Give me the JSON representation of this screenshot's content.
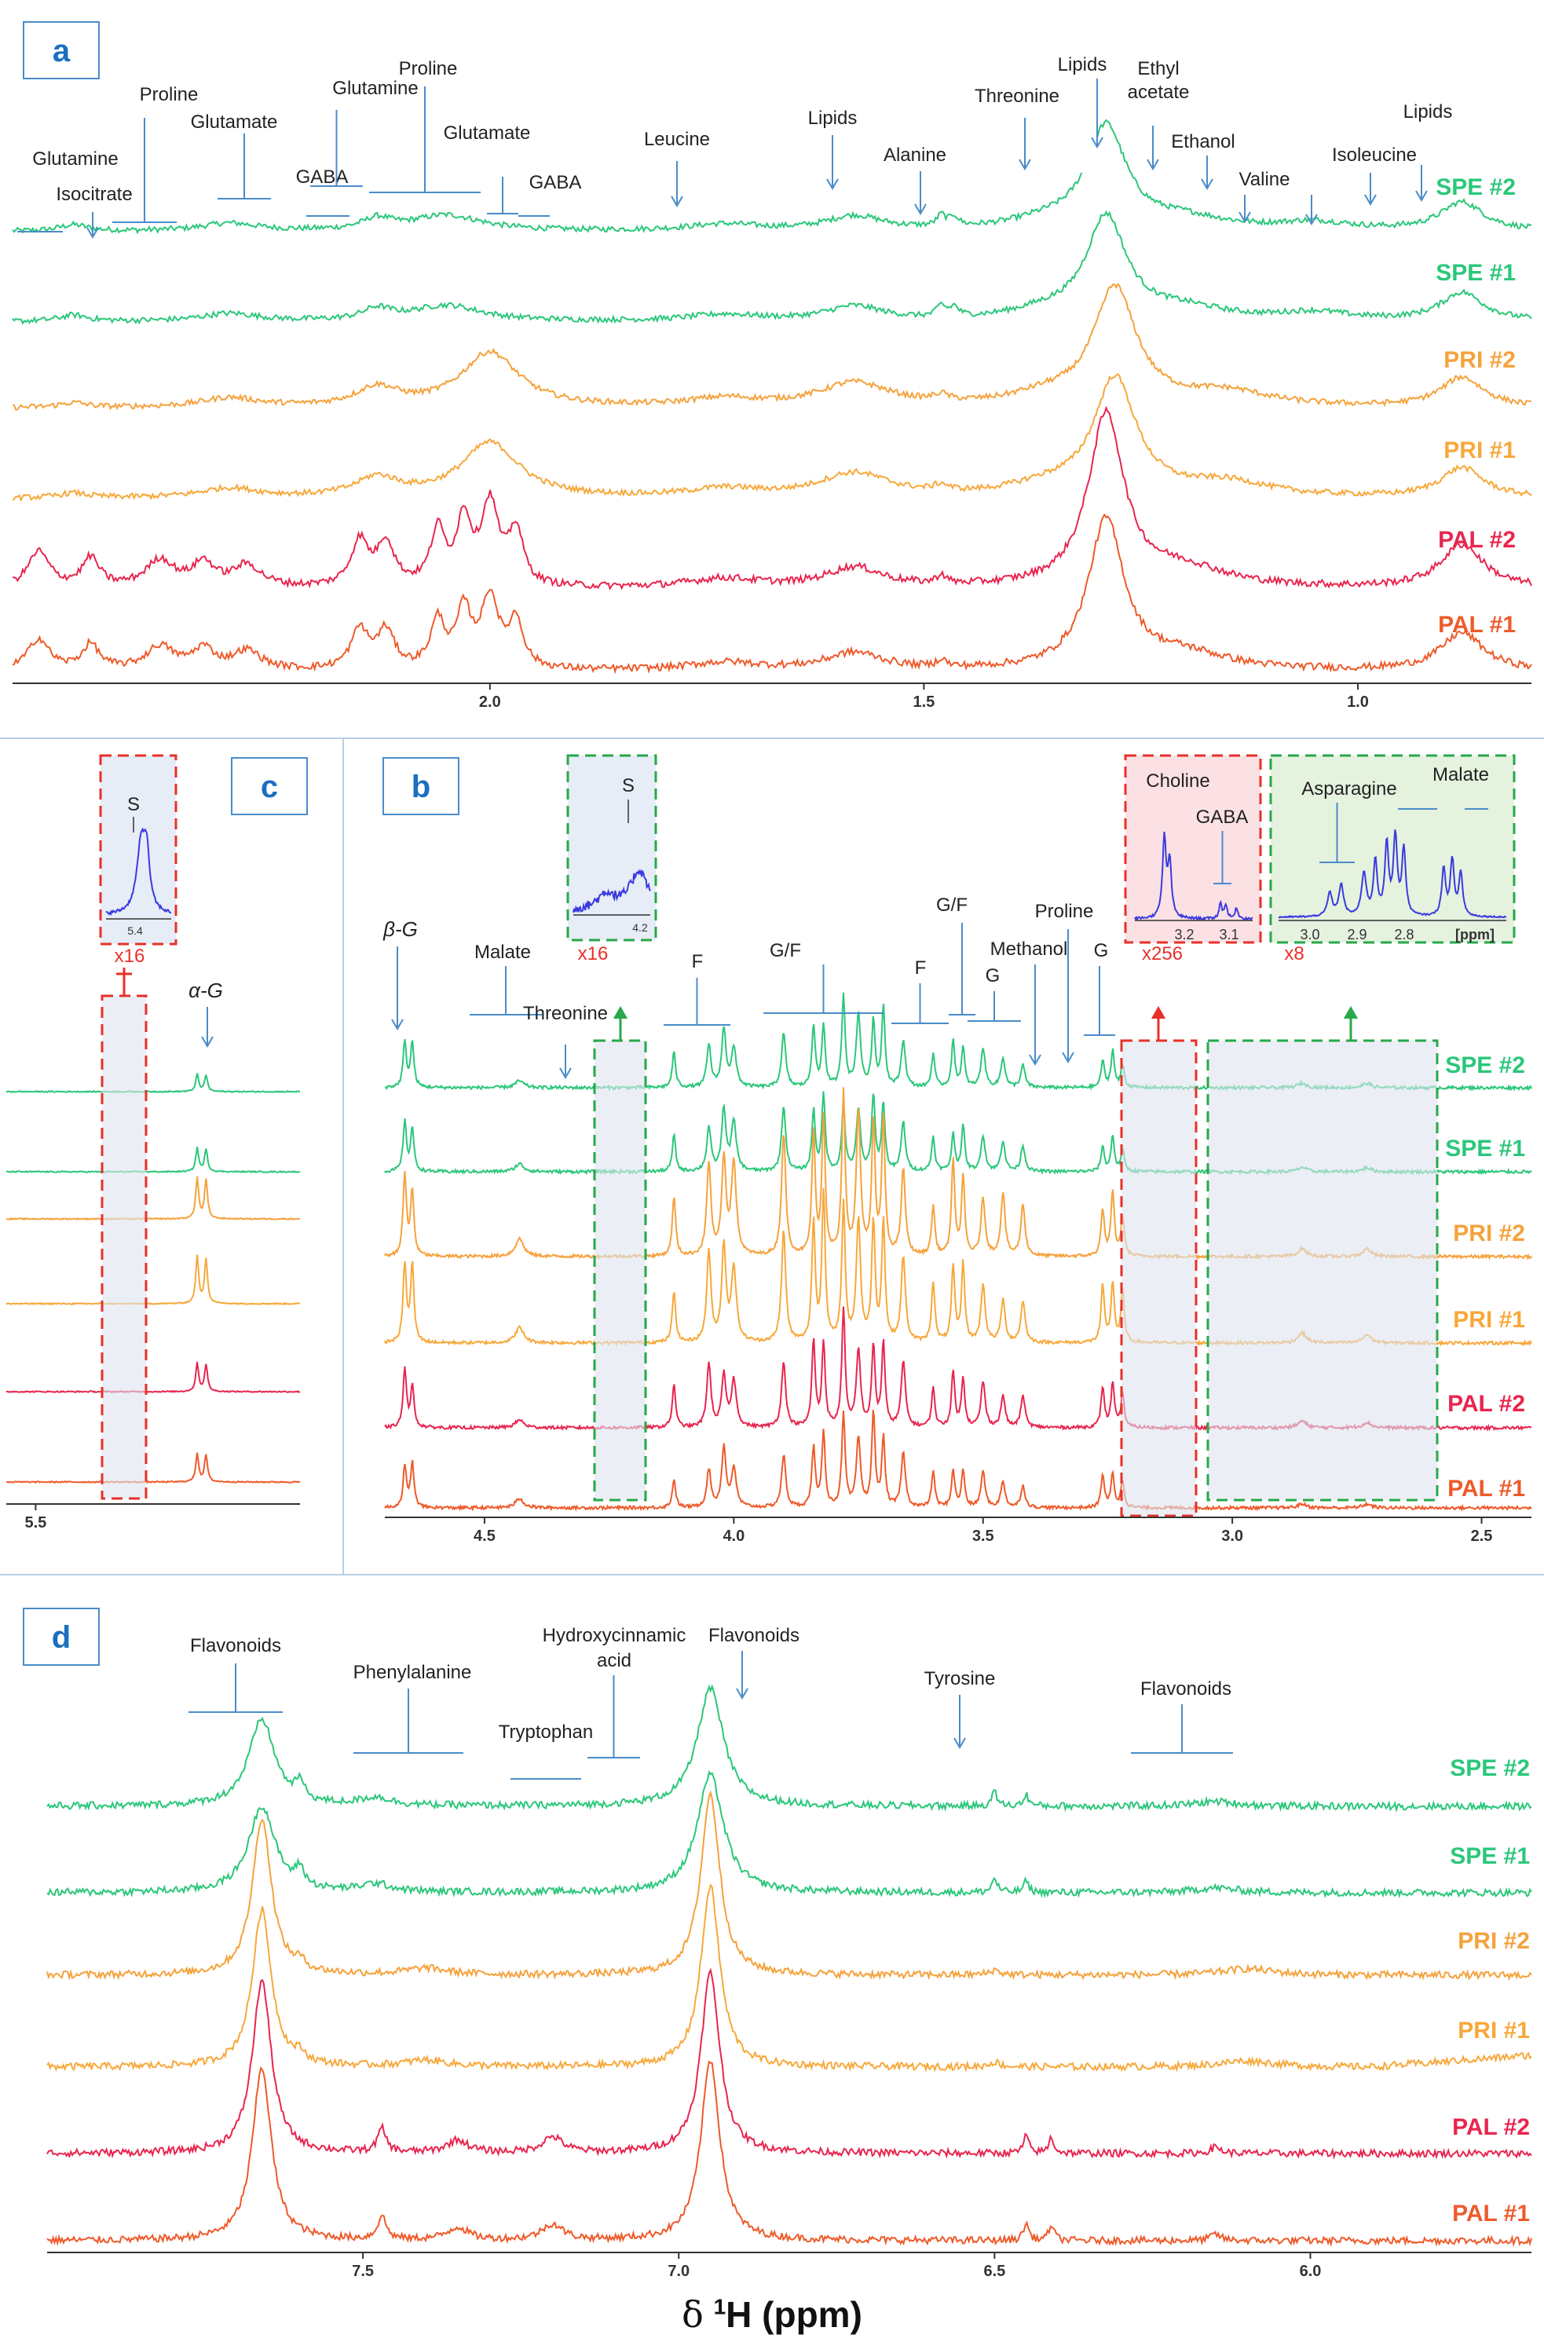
{
  "colors": {
    "SPE #2": "#2bc77a",
    "SPE #1": "#2bc77a",
    "PRI #2": "#f5a23c",
    "PRI #1": "#f7a83a",
    "PAL #2": "#e8254e",
    "PAL #1": "#ee5a2a",
    "annotation": "#4a8cc9",
    "boxRed": "#e8302a",
    "boxGreen": "#27a84a",
    "shade": "#dde4ee"
  },
  "x_axis_title": {
    "delta": "δ",
    "sup": "1",
    "rest": "H (ppm)"
  },
  "chart_data": [
    {
      "panel": "a",
      "type": "line",
      "xlim": [
        2.55,
        0.8
      ],
      "xticks": [
        "2.0",
        "1.5",
        "1.0"
      ],
      "series": [
        "SPE #2",
        "SPE #1",
        "PRI #2",
        "PRI #1",
        "PAL #2",
        "PAL #1"
      ],
      "annotations": [
        "Glutamine",
        "Isocitrate",
        "Proline",
        "Glutamate",
        "GABA",
        "Glutamine",
        "Proline",
        "Glutamate",
        "GABA",
        "Leucine",
        "Lipids",
        "Alanine",
        "Threonine",
        "Lipids",
        "Ethyl acetate",
        "Ethanol",
        "Valine",
        "Isoleucine",
        "Lipids"
      ],
      "peaks_ppm": [
        2.45,
        2.35,
        2.13,
        2.05,
        2.0,
        1.9,
        1.73,
        1.58,
        1.48,
        1.36,
        1.29,
        1.22,
        1.18,
        1.05,
        0.98,
        0.93,
        0.89
      ]
    },
    {
      "panel": "b",
      "type": "line",
      "xlim": [
        4.7,
        2.4
      ],
      "xticks": [
        "4.5",
        "4.0",
        "3.5",
        "3.0",
        "2.5"
      ],
      "series": [
        "SPE #2",
        "SPE #1",
        "PRI #2",
        "PRI #1",
        "PAL #2",
        "PAL #1"
      ],
      "annotations": [
        "β-G",
        "Malate",
        "Threonine",
        "F",
        "G/F",
        "F",
        "G/F",
        "G",
        "Methanol",
        "Proline",
        "G"
      ],
      "insets": [
        {
          "label": "S",
          "ticks": [
            "4.2"
          ],
          "scale": "x16"
        },
        {
          "labels": [
            "Choline",
            "GABA"
          ],
          "ticks": [
            "3.2",
            "3.1"
          ],
          "scale": "x256"
        },
        {
          "labels": [
            "Asparagine",
            "Malate"
          ],
          "ticks": [
            "3.0",
            "2.9",
            "2.8",
            "[ppm]"
          ],
          "scale": "x8"
        }
      ]
    },
    {
      "panel": "c",
      "type": "line",
      "xlim": [
        5.55,
        5.05
      ],
      "xticks": [
        "5.5"
      ],
      "series": [
        "SPE #2",
        "SPE #1",
        "PRI #2",
        "PRI #1",
        "PAL #2",
        "PAL #1"
      ],
      "annotations": [
        "α-G"
      ],
      "insets": [
        {
          "label": "S",
          "ticks": [
            "5.4"
          ],
          "scale": "x16"
        }
      ]
    },
    {
      "panel": "d",
      "type": "line",
      "xlim": [
        8.0,
        5.65
      ],
      "xticks": [
        "7.5",
        "7.0",
        "6.5",
        "6.0"
      ],
      "series": [
        "SPE #2",
        "SPE #1",
        "PRI #2",
        "PRI #1",
        "PAL #2",
        "PAL #1"
      ],
      "annotations": [
        "Flavonoids",
        "Phenylalanine",
        "Tryptophan",
        "Hydroxycinnamic acid",
        "Flavonoids",
        "Tyrosine",
        "Flavonoids"
      ],
      "peaks_ppm": [
        7.66,
        7.6,
        7.45,
        6.95,
        6.5,
        6.45,
        6.15
      ]
    }
  ]
}
